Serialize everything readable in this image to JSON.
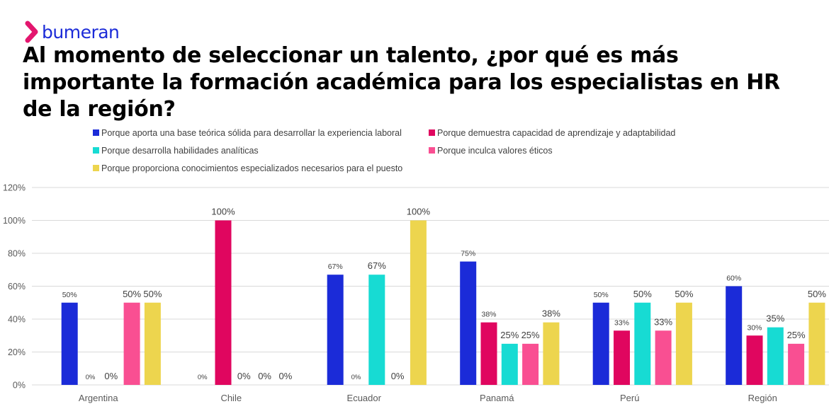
{
  "brand": {
    "name": "bumeran",
    "logo_icon": "chevron-right-icon",
    "color": "#1b2bd8",
    "accent": "#e3166e"
  },
  "title": "Al momento de seleccionar un talento, ¿por qué es más importante la formación académica para los especialistas en HR de la región?",
  "chart_data": {
    "type": "bar",
    "categories": [
      "Argentina",
      "Chile",
      "Ecuador",
      "Panamá",
      "Perú",
      "Región"
    ],
    "series": [
      {
        "name": "Porque aporta una base teórica sólida para desarrollar la experiencia laboral",
        "color": "#1b2bd8",
        "values": [
          50,
          0,
          67,
          75,
          50,
          60
        ]
      },
      {
        "name": "Porque demuestra capacidad de aprendizaje y adaptabilidad",
        "color": "#e0065f",
        "values": [
          0,
          100,
          0,
          38,
          33,
          30
        ]
      },
      {
        "name": "Porque desarrolla habilidades analíticas",
        "color": "#17dbd3",
        "values": [
          0,
          0,
          67,
          25,
          50,
          35
        ]
      },
      {
        "name": "Porque inculca valores éticos",
        "color": "#f94f92",
        "values": [
          50,
          0,
          0,
          25,
          33,
          25
        ]
      },
      {
        "name": "Porque proporciona conocimientos especializados necesarios para el puesto",
        "color": "#edd54e",
        "values": [
          50,
          0,
          100,
          38,
          50,
          50
        ]
      }
    ],
    "data_labels": [
      [
        "50%",
        "0%",
        "0%",
        "50%",
        "50%"
      ],
      [
        "0%",
        "100%",
        "0%",
        "0%",
        "0%"
      ],
      [
        "67%",
        "0%",
        "67%",
        "0%",
        "100%"
      ],
      [
        "75%",
        "38%",
        "25%",
        "25%",
        "38%"
      ],
      [
        "50%",
        "33%",
        "50%",
        "33%",
        "50%"
      ],
      [
        "60%",
        "30%",
        "35%",
        "25%",
        "50%"
      ]
    ],
    "y_ticks": [
      "0%",
      "20%",
      "40%",
      "60%",
      "80%",
      "100%",
      "120%"
    ],
    "ylim": [
      0,
      120
    ],
    "grid": true,
    "legend_position": "top"
  }
}
